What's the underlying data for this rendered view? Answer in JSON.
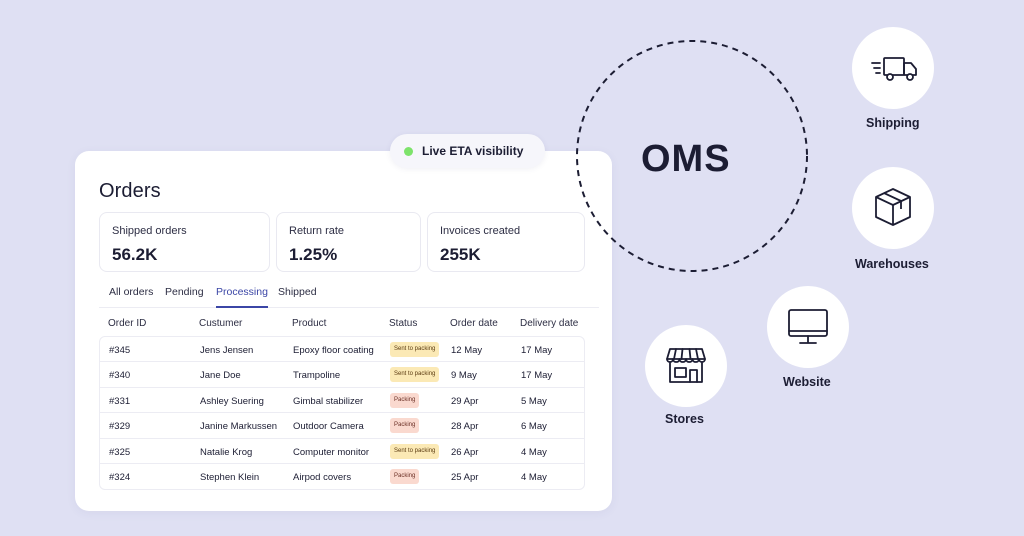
{
  "card": {
    "title": "Orders",
    "stats": [
      {
        "label": "Shipped orders",
        "value": "56.2K"
      },
      {
        "label": "Return rate",
        "value": "1.25%"
      },
      {
        "label": "Invoices created",
        "value": "255K"
      }
    ],
    "tabs": [
      {
        "label": "All orders"
      },
      {
        "label": "Pending"
      },
      {
        "label": "Processing",
        "active": true
      },
      {
        "label": "Shipped"
      }
    ],
    "columns": [
      "Order ID",
      "Custumer",
      "Product",
      "Status",
      "Order date",
      "Delivery date"
    ],
    "rows": [
      {
        "id": "#345",
        "customer": "Jens Jensen",
        "product": "Epoxy floor coating",
        "status": "Sent to packing",
        "order_date": "12 May",
        "delivery_date": "17 May"
      },
      {
        "id": "#340",
        "customer": "Jane Doe",
        "product": "Trampoline",
        "status": "Sent to packing",
        "order_date": "9 May",
        "delivery_date": "17 May"
      },
      {
        "id": "#331",
        "customer": "Ashley Suering",
        "product": "Gimbal stabilizer",
        "status": "Packing",
        "order_date": "29 Apr",
        "delivery_date": "5 May"
      },
      {
        "id": "#329",
        "customer": "Janine Markussen",
        "product": "Outdoor Camera",
        "status": "Packing",
        "order_date": "28 Apr",
        "delivery_date": "6 May"
      },
      {
        "id": "#325",
        "customer": "Natalie Krog",
        "product": "Computer monitor",
        "status": "Sent to packing",
        "order_date": "26 Apr",
        "delivery_date": "4 May"
      },
      {
        "id": "#324",
        "customer": "Stephen Klein",
        "product": "Airpod covers",
        "status": "Packing",
        "order_date": "25 Apr",
        "delivery_date": "4 May"
      }
    ]
  },
  "eta": {
    "label": "Live ETA visibility",
    "dot_color": "#7de36b"
  },
  "oms": {
    "label": "OMS"
  },
  "nodes": [
    {
      "label": "Shipping",
      "icon": "truck-icon"
    },
    {
      "label": "Warehouses",
      "icon": "box-icon"
    },
    {
      "label": "Website",
      "icon": "monitor-icon"
    },
    {
      "label": "Stores",
      "icon": "storefront-icon"
    }
  ],
  "colors": {
    "background": "#dfe0f3",
    "card": "#ffffff",
    "accent": "#3b46a6",
    "badge_sent": "#fbe9b5",
    "badge_packing": "#fad9cf",
    "text": "#1c1d33"
  }
}
